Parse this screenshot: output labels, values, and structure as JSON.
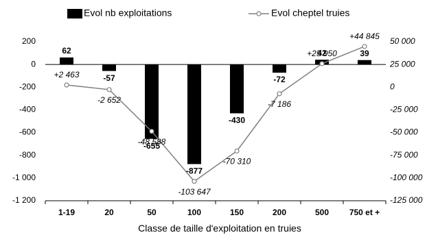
{
  "chart_data": {
    "type": "bar",
    "categories": [
      "1-19",
      "20",
      "50",
      "100",
      "150",
      "200",
      "500",
      "750 et +"
    ],
    "series": [
      {
        "name": "Evol nb exploitations",
        "type": "bar",
        "axis": "left",
        "color": "#000000",
        "values": [
          62,
          -57,
          -655,
          -877,
          -430,
          -72,
          42,
          39
        ],
        "labels": [
          "62",
          "-57",
          "-655",
          "-877",
          "-430",
          "-72",
          "42",
          "39"
        ]
      },
      {
        "name": "Evol cheptel truies",
        "type": "line",
        "axis": "right",
        "color": "#7f7f7f",
        "values": [
          2463,
          -2652,
          -48588,
          -103647,
          -70310,
          -7186,
          25950,
          44845
        ],
        "labels": [
          "+2 463",
          "-2 652",
          "-48 588",
          "-103 647",
          "-70 310",
          "-7 186",
          "+25 950",
          "+44 845"
        ]
      }
    ],
    "xlabel": "Classe de taille d'exploitation en truies",
    "y_left": {
      "ylim": [
        -1200,
        200
      ],
      "ticks": [
        200,
        0,
        -200,
        -400,
        -600,
        -800,
        -1000,
        -1200
      ],
      "tick_labels": [
        "200",
        "0",
        "-200",
        "-400",
        "-600",
        "-800",
        "-1 000",
        "-1 200"
      ]
    },
    "y_right": {
      "ylim": [
        -125000,
        50000
      ],
      "ticks": [
        50000,
        25000,
        0,
        -25000,
        -50000,
        -75000,
        -100000,
        -125000
      ],
      "tick_labels": [
        "50 000",
        "25 000",
        "0",
        "-25 000",
        "-50 000",
        "-75 000",
        "-100 000",
        "-125 000"
      ]
    },
    "grid": false,
    "legend": "top"
  }
}
